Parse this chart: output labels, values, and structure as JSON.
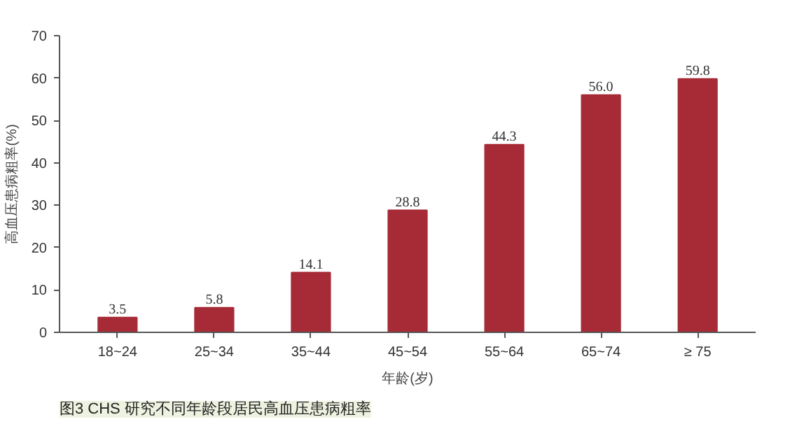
{
  "chart_data": {
    "type": "bar",
    "title": "图3 CHS 研究不同年龄段居民高血压患病粗率",
    "xlabel": "年龄(岁)",
    "ylabel": "高血压患病粗率(%)",
    "categories": [
      "18~24",
      "25~34",
      "35~44",
      "45~54",
      "55~64",
      "65~74",
      "≥ 75"
    ],
    "values": [
      3.5,
      5.8,
      14.1,
      28.8,
      44.3,
      56.0,
      59.8
    ],
    "value_labels": [
      "3.5",
      "5.8",
      "14.1",
      "28.8",
      "44.3",
      "56.0",
      "59.8"
    ],
    "color": "#a62b36",
    "ylim": [
      0,
      70
    ],
    "yticks": [
      0,
      10,
      20,
      30,
      40,
      50,
      60,
      70
    ],
    "grid": false
  }
}
